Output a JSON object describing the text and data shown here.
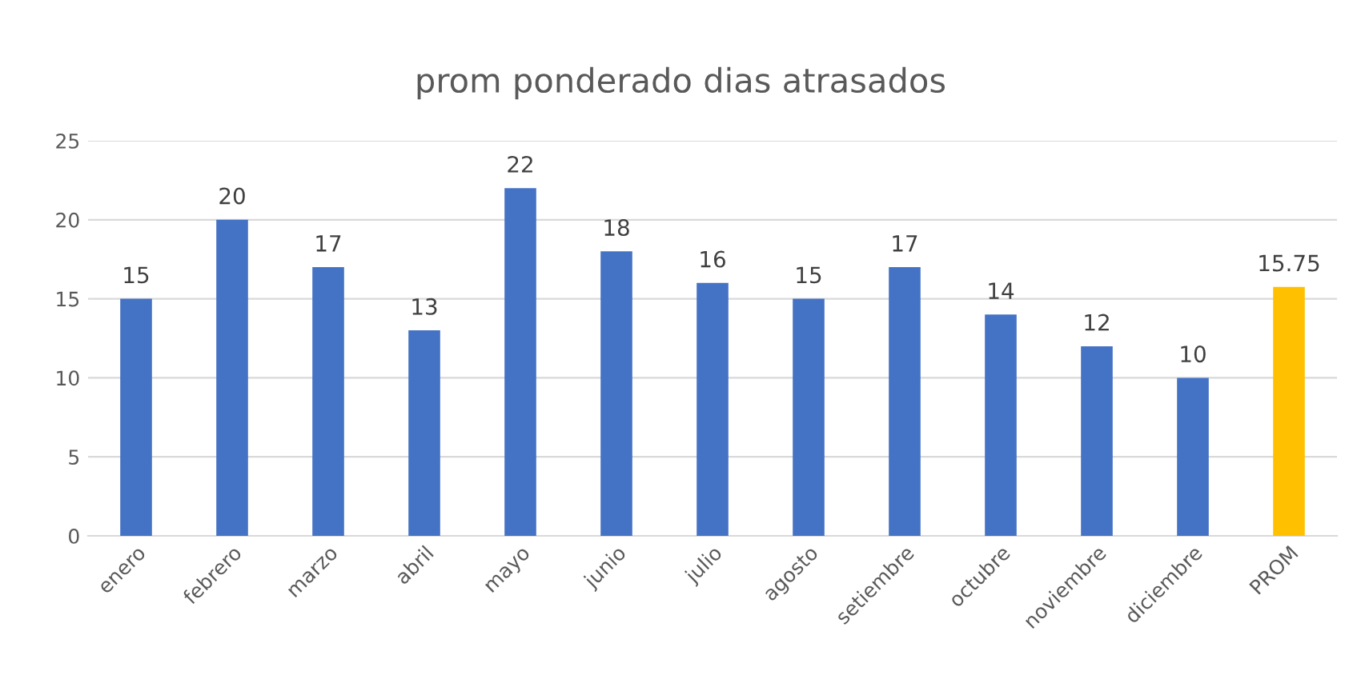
{
  "chart_data": {
    "type": "bar",
    "title": "prom ponderado dias atrasados",
    "categories": [
      "enero",
      "febrero",
      "marzo",
      "abril",
      "mayo",
      "junio",
      "julio",
      "agosto",
      "setiembre",
      "octubre",
      "noviembre",
      "diciembre",
      "PROM"
    ],
    "values": [
      15,
      20,
      17,
      13,
      22,
      18,
      16,
      15,
      17,
      14,
      12,
      10,
      15.75
    ],
    "colors": [
      "#4472c4",
      "#4472c4",
      "#4472c4",
      "#4472c4",
      "#4472c4",
      "#4472c4",
      "#4472c4",
      "#4472c4",
      "#4472c4",
      "#4472c4",
      "#4472c4",
      "#4472c4",
      "#ffc000"
    ],
    "ylim": [
      0,
      25
    ],
    "yticks": [
      0,
      5,
      10,
      15,
      20,
      25
    ],
    "grid": "y",
    "data_labels": true
  }
}
